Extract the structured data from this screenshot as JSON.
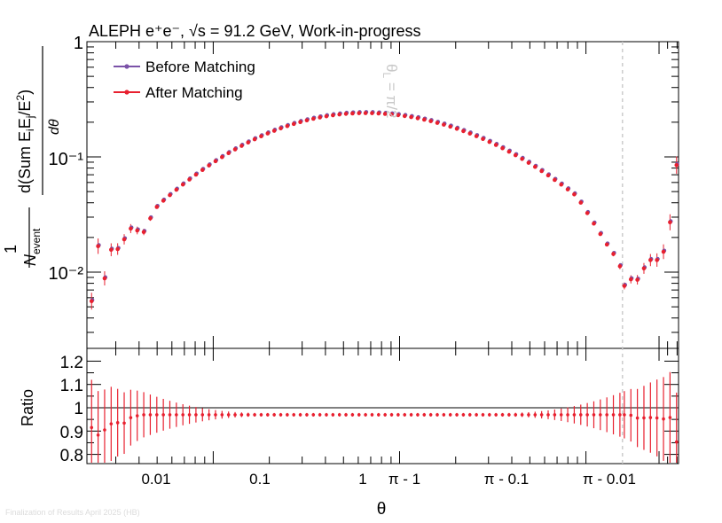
{
  "chart_data": {
    "type": "scatter",
    "title": "ALEPH e⁺e⁻, √s = 91.2 GeV, Work-in-progress",
    "xlabel": "θ",
    "ylabel": "1/N_event d(Sum E_iE_j/E²)/dθ",
    "ylabel_parts": {
      "frac_num": "1",
      "frac_den": "N",
      "den_sub": "event",
      "main": "d(Sum E",
      "sub_i": "i",
      "mid": "E",
      "sub_j": "j",
      "tail": "/E",
      "sup": "2",
      "close": ")",
      "dtheta": "dθ"
    },
    "yscale": "log",
    "ylim": [
      0.002,
      1
    ],
    "ytick_labels": [
      "1",
      "10⁻¹",
      "10⁻²"
    ],
    "ytick_values": [
      1,
      0.1,
      0.01
    ],
    "xscale": "symmetric-log",
    "xtick_labels": [
      "0.01",
      "0.1",
      "1",
      "π - 1",
      "π - 0.1",
      "π - 0.01"
    ],
    "legend": [
      "Before Matching",
      "After Matching"
    ],
    "legend_position": "top-left",
    "annotation": "θL = π/2",
    "annotation_parts": {
      "main": "θ",
      "sub": "L",
      "rest": " = π/2"
    },
    "series": [
      {
        "name": "Before Matching",
        "color": "#7b52a8"
      },
      {
        "name": "After Matching",
        "color": "#e8202f"
      }
    ],
    "points_x": [
      0.0025,
      0.003,
      0.0035,
      0.004,
      0.005,
      0.006,
      0.007,
      0.009,
      0.011,
      0.013,
      0.016,
      0.02,
      0.025,
      0.03,
      0.04,
      0.05,
      0.065,
      0.08,
      0.1,
      0.13,
      0.16,
      0.2,
      0.3,
      0.45,
      0.65,
      0.85,
      1.0,
      1.2,
      1.45,
      1.57,
      1.7,
      1.9,
      2.1,
      2.3,
      2.5,
      2.7,
      2.9,
      3.0,
      3.04,
      3.07,
      3.09,
      3.105,
      3.115,
      3.121,
      3.127,
      3.131,
      3.134,
      3.136,
      3.138
    ],
    "ratio": {
      "ylabel": "Ratio",
      "ylim": [
        0.76,
        1.24
      ],
      "ytick_labels": [
        "0.8",
        "0.9",
        "1",
        "1.1",
        "1.2"
      ],
      "ytick_values": [
        0.8,
        0.9,
        1.0,
        1.1,
        1.2
      ],
      "reference_line": 1.0,
      "note": "Ratio After/Before is about 0.97 across the range, error bars widen at both edges"
    }
  },
  "footer": "Finalization of Results April 2025 (HB)"
}
